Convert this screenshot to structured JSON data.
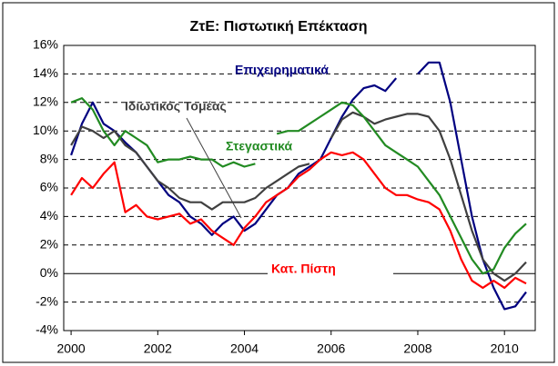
{
  "chart_data": {
    "type": "line",
    "title": "ΖτΕ: Πιστωτική Επέκταση",
    "x": [
      2000,
      2000.25,
      2000.5,
      2000.75,
      2001,
      2001.25,
      2001.5,
      2001.75,
      2002,
      2002.25,
      2002.5,
      2002.75,
      2003,
      2003.25,
      2003.5,
      2003.75,
      2004,
      2004.25,
      2004.5,
      2004.75,
      2005,
      2005.25,
      2005.5,
      2005.75,
      2006,
      2006.25,
      2006.5,
      2006.75,
      2007,
      2007.25,
      2007.5,
      2007.75,
      2008,
      2008.25,
      2008.5,
      2008.75,
      2009,
      2009.25,
      2009.5,
      2009.75,
      2010,
      2010.25,
      2010.5
    ],
    "series": [
      {
        "name": "Επιχειρηματικά",
        "color": "#000080",
        "values": [
          8.3,
          10.5,
          12,
          10.5,
          10,
          9.2,
          8.5,
          7.5,
          6.5,
          5.5,
          5,
          4,
          3.5,
          2.7,
          3.5,
          4,
          3,
          3.5,
          4.5,
          5.5,
          6,
          7,
          7.5,
          8,
          9.5,
          11,
          12.2,
          13,
          13.2,
          12.8,
          13.7,
          null,
          14,
          14.8,
          14.8,
          12,
          8,
          4,
          1,
          -1,
          -2.5,
          -2.3,
          -1.3
        ]
      },
      {
        "name": "Ιδιωτικός Τομέας",
        "color": "#404040",
        "values": [
          9,
          10.3,
          10,
          9.5,
          10,
          9,
          8.5,
          7.5,
          6.5,
          6,
          5.3,
          5,
          5,
          4.5,
          5,
          5,
          5,
          5.3,
          6,
          6.5,
          7,
          7.5,
          7.7,
          null,
          9.5,
          10.8,
          11.3,
          11,
          10.5,
          10.8,
          11,
          11.2,
          11.2,
          11,
          10,
          8,
          5.5,
          3,
          1,
          0,
          -0.5,
          0,
          0.8
        ]
      },
      {
        "name": "Στεγαστικά",
        "color": "#228B22",
        "values": [
          12,
          12.3,
          11.5,
          10,
          9,
          10,
          9.5,
          9,
          7.8,
          8,
          8,
          8.2,
          8,
          8,
          7.5,
          7.8,
          7.5,
          7.7,
          null,
          9.8,
          10,
          10,
          10.5,
          11,
          11.5,
          12,
          11.8,
          11,
          10,
          9,
          8.5,
          8,
          7.5,
          6.5,
          5.5,
          4,
          2.5,
          1,
          0,
          0.3,
          1.8,
          2.8,
          3.5
        ]
      },
      {
        "name": "Κατ. Πίστη",
        "color": "#FF0000",
        "values": [
          5.5,
          6.7,
          6,
          7,
          7.8,
          4.3,
          4.8,
          4,
          3.8,
          4,
          4.2,
          3.5,
          3.8,
          3,
          2.5,
          2,
          3.2,
          4,
          5,
          5.5,
          6,
          6.8,
          7.3,
          8,
          8.5,
          8.3,
          8.5,
          8,
          7,
          6,
          5.5,
          5.5,
          5.2,
          5,
          4.5,
          3,
          1,
          -0.5,
          -1,
          -0.5,
          -1,
          -0.3,
          -0.7
        ]
      }
    ],
    "xlim": [
      1999.83,
      2010.71
    ],
    "xticks": [
      2000,
      2002,
      2004,
      2006,
      2008,
      2010
    ],
    "ylim": [
      -4,
      16
    ],
    "yticks": [
      {
        "value": -4,
        "label": "-4%"
      },
      {
        "value": -2,
        "label": "-2%"
      },
      {
        "value": 0,
        "label": "0%"
      },
      {
        "value": 2,
        "label": "2%"
      },
      {
        "value": 4,
        "label": "4%"
      },
      {
        "value": 6,
        "label": "6%"
      },
      {
        "value": 8,
        "label": "8%"
      },
      {
        "value": 10,
        "label": "10%"
      },
      {
        "value": 12,
        "label": "12%"
      },
      {
        "value": 14,
        "label": "14%"
      },
      {
        "value": 16,
        "label": "16%"
      }
    ],
    "grid": true
  }
}
